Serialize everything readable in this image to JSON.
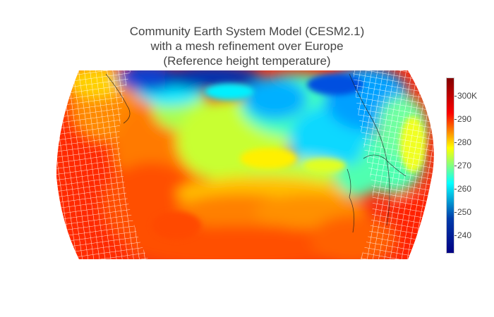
{
  "title": {
    "line1": "Community Earth System Model (CESM2.1)",
    "line2": "with a mesh refinement over Europe",
    "line3": "(Reference height temperature)"
  },
  "colorbar": {
    "ticks": [
      "300K",
      "290",
      "280",
      "270",
      "260",
      "250",
      "240"
    ],
    "tick_values": [
      300,
      290,
      280,
      270,
      260,
      250,
      240
    ],
    "min": 232,
    "max": 308,
    "colorscale": [
      "#000083",
      "#003caa",
      "#05ffff",
      "#ffff00",
      "#fa0000",
      "#800000"
    ]
  },
  "map": {
    "projection": "kavrayskiy7",
    "variable": "Reference height temperature",
    "region": "Europe"
  }
}
